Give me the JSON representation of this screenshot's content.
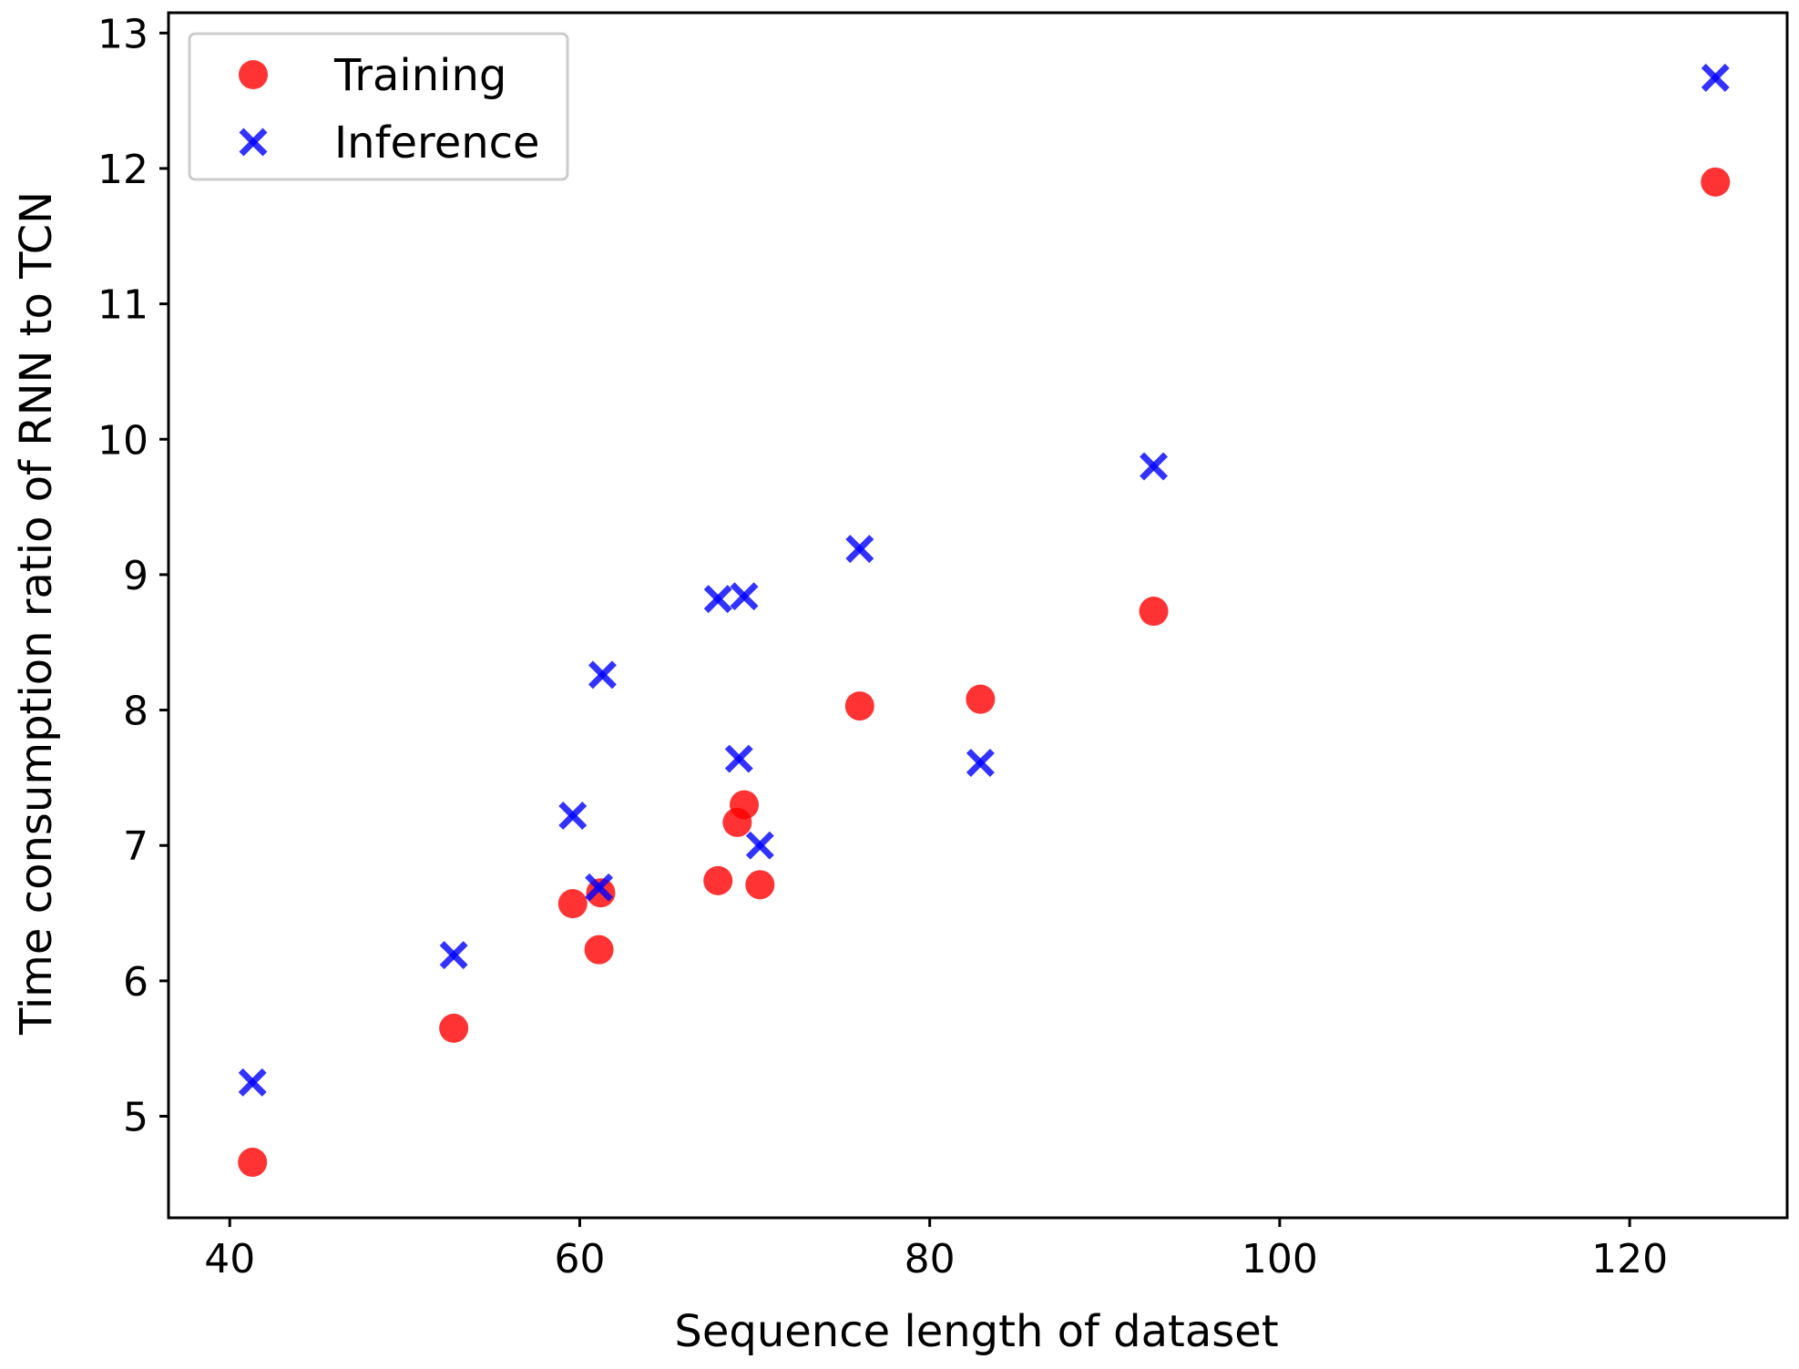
{
  "chart_data": {
    "type": "scatter",
    "title": "",
    "xlabel": "Sequence length of dataset",
    "ylabel": "Time consumption ratio of RNN to TCN",
    "xlim": [
      36.5,
      129
    ],
    "ylim": [
      4.25,
      13.15
    ],
    "x_ticks": [
      40,
      60,
      80,
      100,
      120
    ],
    "y_ticks": [
      5,
      6,
      7,
      8,
      9,
      10,
      11,
      12,
      13
    ],
    "legend_position": "top-left",
    "series": [
      {
        "name": "Training",
        "marker": "circle",
        "color": "#ff0000",
        "points": [
          {
            "x": 41.3,
            "y": 4.66
          },
          {
            "x": 52.8,
            "y": 5.65
          },
          {
            "x": 59.6,
            "y": 6.57
          },
          {
            "x": 61.2,
            "y": 6.65
          },
          {
            "x": 61.1,
            "y": 6.23
          },
          {
            "x": 67.9,
            "y": 6.74
          },
          {
            "x": 69.0,
            "y": 7.17
          },
          {
            "x": 69.4,
            "y": 7.3
          },
          {
            "x": 70.3,
            "y": 6.71
          },
          {
            "x": 76.0,
            "y": 8.03
          },
          {
            "x": 82.9,
            "y": 8.08
          },
          {
            "x": 92.8,
            "y": 8.73
          },
          {
            "x": 124.9,
            "y": 11.9
          }
        ]
      },
      {
        "name": "Inference",
        "marker": "x",
        "color": "#0000ff",
        "points": [
          {
            "x": 41.3,
            "y": 5.25
          },
          {
            "x": 52.8,
            "y": 6.19
          },
          {
            "x": 59.6,
            "y": 7.22
          },
          {
            "x": 61.1,
            "y": 6.69
          },
          {
            "x": 61.3,
            "y": 8.26
          },
          {
            "x": 67.9,
            "y": 8.82
          },
          {
            "x": 69.4,
            "y": 8.84
          },
          {
            "x": 69.1,
            "y": 7.64
          },
          {
            "x": 70.3,
            "y": 7.0
          },
          {
            "x": 76.0,
            "y": 9.19
          },
          {
            "x": 82.9,
            "y": 7.61
          },
          {
            "x": 92.8,
            "y": 9.8
          },
          {
            "x": 124.9,
            "y": 12.67
          }
        ]
      }
    ]
  }
}
